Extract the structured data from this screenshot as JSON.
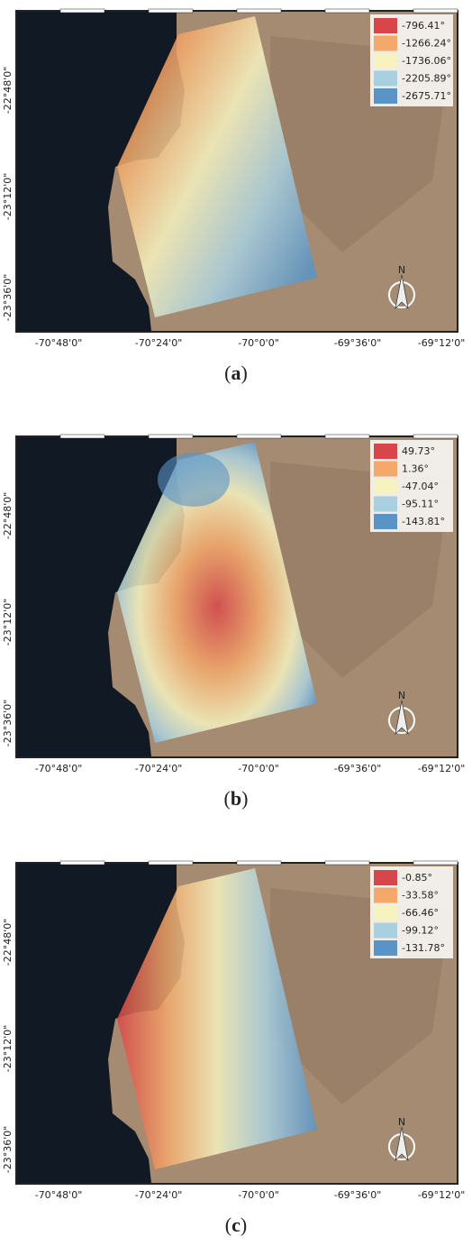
{
  "north_label": "N",
  "x_ticks": [
    "-70°48'0\"",
    "-70°24'0\"",
    "-70°0'0\"",
    "-69°36'0\"",
    "-69°12'0\""
  ],
  "y_ticks": [
    "-22°48'0\"",
    "-23°12'0\"",
    "-23°36'0\""
  ],
  "panels": [
    {
      "caption": "a",
      "gradient": "diagonal",
      "legend": [
        {
          "label": "-796.41°",
          "color": "#d7474a"
        },
        {
          "label": "-1266.24°",
          "color": "#f4a86a"
        },
        {
          "label": "-1736.06°",
          "color": "#f7f3c0"
        },
        {
          "label": "-2205.89°",
          "color": "#a9d0e0"
        },
        {
          "label": "-2675.71°",
          "color": "#5a94c6"
        }
      ]
    },
    {
      "caption": "b",
      "gradient": "mixed",
      "legend": [
        {
          "label": "49.73°",
          "color": "#d7474a"
        },
        {
          "label": "1.36°",
          "color": "#f4a86a"
        },
        {
          "label": "-47.04°",
          "color": "#f7f3c0"
        },
        {
          "label": "-95.11°",
          "color": "#a9d0e0"
        },
        {
          "label": "-143.81°",
          "color": "#5a94c6"
        }
      ]
    },
    {
      "caption": "c",
      "gradient": "horizontal",
      "legend": [
        {
          "label": "-0.85°",
          "color": "#d7474a"
        },
        {
          "label": "-33.58°",
          "color": "#f4a86a"
        },
        {
          "label": "-66.46°",
          "color": "#f7f3c0"
        },
        {
          "label": "-99.12°",
          "color": "#a9d0e0"
        },
        {
          "label": "-131.78°",
          "color": "#5a94c6"
        }
      ]
    }
  ]
}
